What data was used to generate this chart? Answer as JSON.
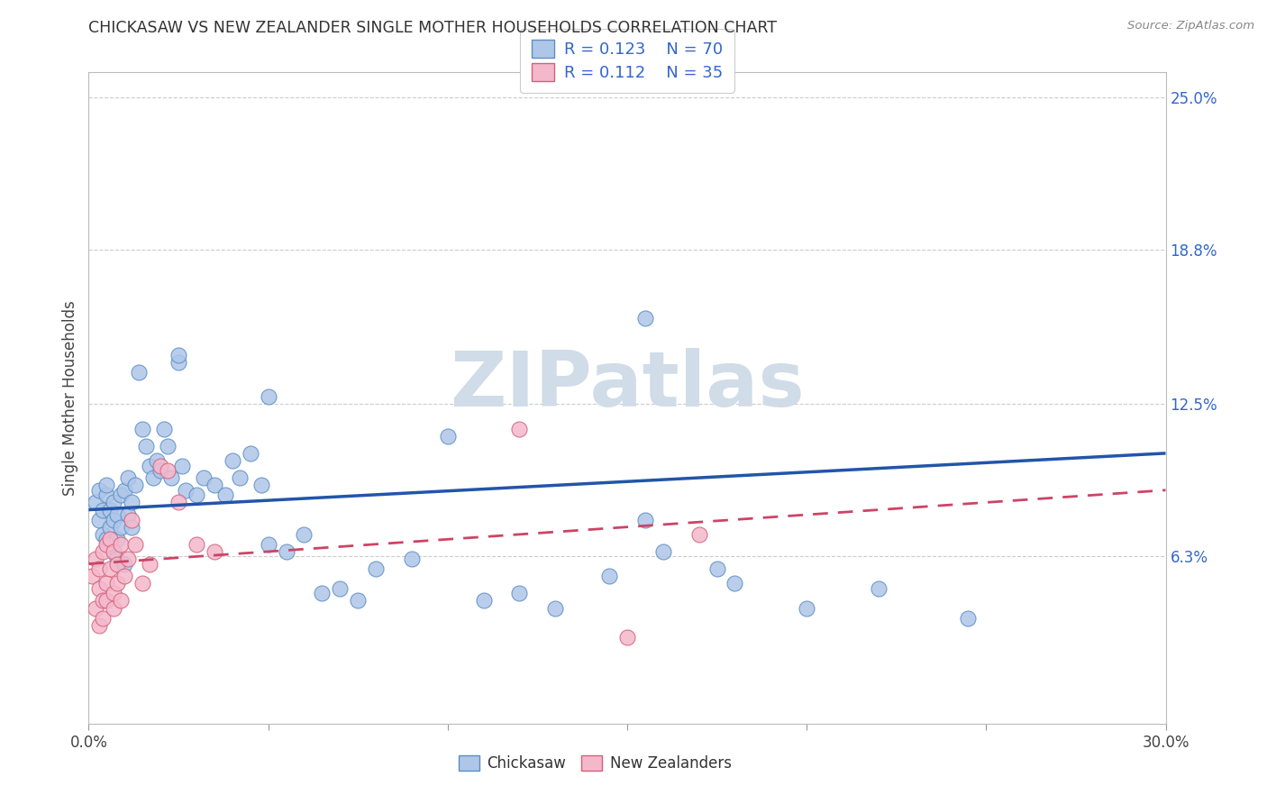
{
  "title": "CHICKASAW VS NEW ZEALANDER SINGLE MOTHER HOUSEHOLDS CORRELATION CHART",
  "source": "Source: ZipAtlas.com",
  "ylabel": "Single Mother Households",
  "x_min": 0.0,
  "x_max": 0.3,
  "y_min": 0.0,
  "y_max": 0.25,
  "x_ticks": [
    0.0,
    0.05,
    0.1,
    0.15,
    0.2,
    0.25,
    0.3
  ],
  "y_ticks_right": [
    0.063,
    0.125,
    0.188,
    0.25
  ],
  "y_tick_labels_right": [
    "6.3%",
    "12.5%",
    "18.8%",
    "25.0%"
  ],
  "legend_r1": "0.123",
  "legend_n1": "70",
  "legend_r2": "0.112",
  "legend_n2": "35",
  "chickasaw_color": "#aec6e8",
  "chickasaw_edge": "#5b8ec4",
  "nz_color": "#f4b8cc",
  "nz_edge": "#d4607a",
  "trend_chickasaw_color": "#2255aa",
  "trend_nz_color": "#cc4466",
  "watermark_color": "#d0dce8",
  "scatter_chickasaw_x": [
    0.002,
    0.003,
    0.003,
    0.004,
    0.004,
    0.005,
    0.005,
    0.005,
    0.006,
    0.006,
    0.006,
    0.007,
    0.007,
    0.007,
    0.008,
    0.008,
    0.008,
    0.009,
    0.009,
    0.01,
    0.01,
    0.011,
    0.011,
    0.012,
    0.012,
    0.013,
    0.014,
    0.015,
    0.016,
    0.017,
    0.018,
    0.019,
    0.02,
    0.021,
    0.022,
    0.023,
    0.025,
    0.026,
    0.027,
    0.03,
    0.032,
    0.035,
    0.038,
    0.04,
    0.042,
    0.045,
    0.048,
    0.05,
    0.055,
    0.06,
    0.065,
    0.07,
    0.075,
    0.08,
    0.09,
    0.1,
    0.11,
    0.12,
    0.13,
    0.145,
    0.155,
    0.16,
    0.175,
    0.18,
    0.2,
    0.22,
    0.245,
    0.155,
    0.05,
    0.025
  ],
  "scatter_chickasaw_y": [
    0.085,
    0.078,
    0.09,
    0.072,
    0.082,
    0.07,
    0.088,
    0.092,
    0.068,
    0.075,
    0.082,
    0.065,
    0.078,
    0.085,
    0.062,
    0.07,
    0.08,
    0.075,
    0.088,
    0.06,
    0.09,
    0.08,
    0.095,
    0.075,
    0.085,
    0.092,
    0.138,
    0.115,
    0.108,
    0.1,
    0.095,
    0.102,
    0.098,
    0.115,
    0.108,
    0.095,
    0.142,
    0.1,
    0.09,
    0.088,
    0.095,
    0.092,
    0.088,
    0.102,
    0.095,
    0.105,
    0.092,
    0.068,
    0.065,
    0.072,
    0.048,
    0.05,
    0.045,
    0.058,
    0.062,
    0.112,
    0.045,
    0.048,
    0.042,
    0.055,
    0.16,
    0.065,
    0.058,
    0.052,
    0.042,
    0.05,
    0.038,
    0.078,
    0.128,
    0.145
  ],
  "scatter_nz_x": [
    0.001,
    0.002,
    0.002,
    0.003,
    0.003,
    0.003,
    0.004,
    0.004,
    0.004,
    0.005,
    0.005,
    0.005,
    0.006,
    0.006,
    0.007,
    0.007,
    0.007,
    0.008,
    0.008,
    0.009,
    0.009,
    0.01,
    0.011,
    0.012,
    0.013,
    0.015,
    0.017,
    0.02,
    0.022,
    0.025,
    0.03,
    0.035,
    0.12,
    0.15,
    0.17
  ],
  "scatter_nz_y": [
    0.055,
    0.062,
    0.042,
    0.058,
    0.05,
    0.035,
    0.065,
    0.045,
    0.038,
    0.068,
    0.052,
    0.045,
    0.07,
    0.058,
    0.065,
    0.048,
    0.042,
    0.06,
    0.052,
    0.068,
    0.045,
    0.055,
    0.062,
    0.078,
    0.068,
    0.052,
    0.06,
    0.1,
    0.098,
    0.085,
    0.068,
    0.065,
    0.115,
    0.03,
    0.072
  ],
  "trend_chickasaw_x0": 0.0,
  "trend_chickasaw_y0": 0.082,
  "trend_chickasaw_x1": 0.3,
  "trend_chickasaw_y1": 0.105,
  "trend_nz_x0": 0.0,
  "trend_nz_y0": 0.06,
  "trend_nz_x1": 0.3,
  "trend_nz_y1": 0.09
}
